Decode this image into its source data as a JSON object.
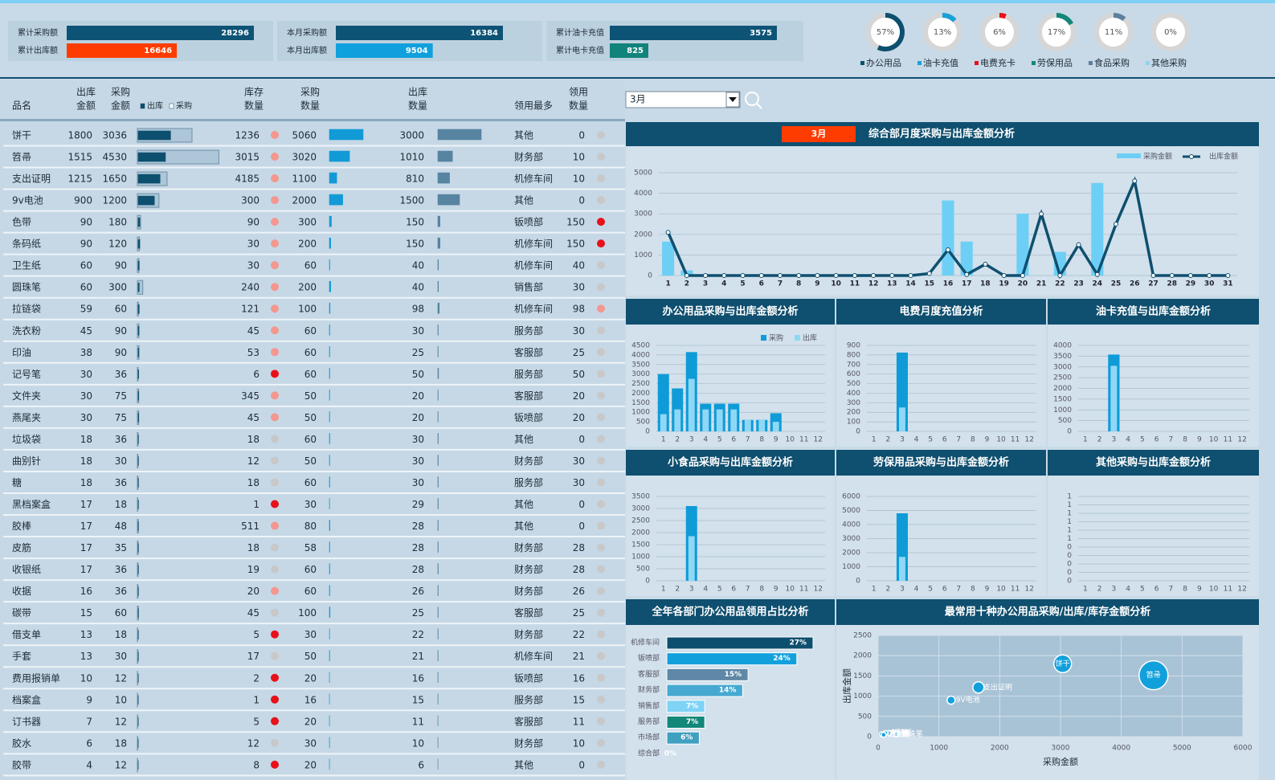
{
  "kpis": [
    {
      "items": [
        {
          "label": "累计采购额",
          "value": 28296,
          "color": "#0d5375"
        },
        {
          "label": "累计出库额",
          "value": 16646,
          "color": "#ff3c00"
        }
      ]
    },
    {
      "items": [
        {
          "label": "本月采购额",
          "value": 16384,
          "color": "#0d5375"
        },
        {
          "label": "本月出库额",
          "value": 9504,
          "color": "#10a0dd"
        }
      ]
    },
    {
      "items": [
        {
          "label": "累计油卡充值",
          "value": 3575,
          "color": "#0d5375"
        },
        {
          "label": "累计电卡充值",
          "value": 825,
          "color": "#12837a"
        }
      ]
    }
  ],
  "filter": {
    "month": "3月"
  },
  "table": {
    "headers": [
      [
        "品名"
      ],
      [
        "出库",
        "金额"
      ],
      [
        "采购",
        "金额"
      ],
      [
        "库存",
        "数量"
      ],
      [
        "采购",
        "数量"
      ],
      [
        "出库",
        "数量"
      ],
      [
        "领用最多"
      ],
      [
        "领用",
        "数量"
      ]
    ],
    "bar_legend": [
      "出库",
      "采购"
    ],
    "rows": [
      [
        "饼干",
        1800,
        3036,
        1236,
        5060,
        3000,
        "其他",
        0
      ],
      [
        "笤帚",
        1515,
        4530,
        3015,
        3020,
        1010,
        "财务部",
        10
      ],
      [
        "支出证明",
        1215,
        1650,
        4185,
        1100,
        810,
        "机修车间",
        10
      ],
      [
        "9v电池",
        900,
        1200,
        300,
        2000,
        1500,
        "其他",
        0
      ],
      [
        "色带",
        90,
        180,
        90,
        300,
        150,
        "钣喷部",
        150
      ],
      [
        "条码纸",
        90,
        120,
        30,
        200,
        150,
        "机修车间",
        150
      ],
      [
        "卫生纸",
        60,
        90,
        30,
        60,
        40,
        "机修车间",
        40
      ],
      [
        "圆珠笔",
        60,
        300,
        240,
        200,
        40,
        "销售部",
        30
      ],
      [
        "拉链袋",
        59,
        60,
        121,
        100,
        98,
        "机修车间",
        98
      ],
      [
        "洗衣粉",
        45,
        90,
        45,
        60,
        30,
        "服务部",
        30
      ],
      [
        "印油",
        38,
        90,
        53,
        60,
        25,
        "客服部",
        25
      ],
      [
        "记号笔",
        30,
        36,
        6,
        60,
        50,
        "服务部",
        50
      ],
      [
        "文件夹",
        30,
        75,
        345,
        50,
        20,
        "客服部",
        20
      ],
      [
        "燕尾夹",
        30,
        75,
        45,
        50,
        20,
        "钣喷部",
        20
      ],
      [
        "垃圾袋",
        18,
        36,
        18,
        60,
        30,
        "其他",
        0
      ],
      [
        "曲别针",
        18,
        30,
        12,
        50,
        30,
        "财务部",
        30
      ],
      [
        "糖",
        18,
        36,
        18,
        60,
        30,
        "服务部",
        30
      ],
      [
        "黑档案盒",
        17,
        18,
        1,
        30,
        29,
        "其他",
        0
      ],
      [
        "胶棒",
        17,
        48,
        511,
        80,
        28,
        "其他",
        0
      ],
      [
        "皮筋",
        17,
        35,
        18,
        58,
        28,
        "财务部",
        28
      ],
      [
        "收银纸",
        17,
        36,
        19,
        60,
        28,
        "财务部",
        28
      ],
      [
        "收据",
        16,
        36,
        20,
        60,
        26,
        "财务部",
        26
      ],
      [
        "碳带",
        15,
        60,
        45,
        100,
        25,
        "客服部",
        25
      ],
      [
        "借支单",
        13,
        18,
        5,
        30,
        22,
        "财务部",
        22
      ],
      [
        "手套",
        13,
        30,
        17,
        50,
        21,
        "机修车间",
        21
      ],
      [
        "费用报销单",
        10,
        12,
        2,
        20,
        16,
        "钣喷部",
        16
      ],
      [
        "档案盒",
        9,
        10,
        1,
        16,
        15,
        "服务部",
        15
      ],
      [
        "订书器",
        7,
        12,
        5,
        20,
        11,
        "客服部",
        11
      ],
      [
        "胶水",
        6,
        18,
        12,
        30,
        10,
        "财务部",
        10
      ],
      [
        "胶带",
        4,
        12,
        8,
        20,
        6,
        "其他",
        0
      ]
    ],
    "stock_dot_colors": [
      "#f4978e",
      "#f4978e",
      "#f4978e",
      "#f4978e",
      "#f4978e",
      "#f4978e",
      "#f4978e",
      "#f4978e",
      "#f4978e",
      "#f4978e",
      "#f4978e",
      "#e8101a",
      "#f4978e",
      "#f4978e",
      "#c8c8c8",
      "#c8c8c8",
      "#c8c8c8",
      "#e8101a",
      "#f4978e",
      "#c8c8c8",
      "#c8c8c8",
      "#f4978e",
      "#c8c8c8",
      "#e8101a",
      "#c8c8c8",
      "#e8101a",
      "#e8101a",
      "#e8101a",
      "#c8c8c8",
      "#e8101a"
    ],
    "use_dot_colors": [
      "#c8c8c8",
      "#c8c8c8",
      "#c8c8c8",
      "#c8c8c8",
      "#e8101a",
      "#e8101a",
      "#c8c8c8",
      "#c8c8c8",
      "#f4978e",
      "#c8c8c8",
      "#c8c8c8",
      "#c8c8c8",
      "#c8c8c8",
      "#c8c8c8",
      "#c8c8c8",
      "#c8c8c8",
      "#c8c8c8",
      "#c8c8c8",
      "#c8c8c8",
      "#c8c8c8",
      "#c8c8c8",
      "#c8c8c8",
      "#c8c8c8",
      "#c8c8c8",
      "#c8c8c8",
      "#c8c8c8",
      "#c8c8c8",
      "#c8c8c8",
      "#c8c8c8",
      "#c8c8c8"
    ]
  },
  "chart_data": [
    {
      "type": "bar",
      "title": "综合部月度采购与出库金额分析",
      "categories": [
        "1",
        "2",
        "3",
        "4",
        "5",
        "6",
        "7",
        "8",
        "9",
        "10",
        "11",
        "12",
        "13",
        "14",
        "15",
        "16",
        "17",
        "18",
        "19",
        "20",
        "21",
        "22",
        "23",
        "24",
        "25",
        "26",
        "27",
        "28",
        "29",
        "30",
        "31"
      ],
      "series": [
        {
          "name": "采购金额",
          "type": "bar",
          "color": "#6dcff6",
          "values": [
            1650,
            250,
            0,
            0,
            0,
            0,
            0,
            0,
            0,
            0,
            0,
            0,
            0,
            0,
            0,
            3650,
            1650,
            0,
            0,
            3000,
            0,
            1150,
            0,
            4500,
            0,
            0,
            0,
            0,
            0,
            0,
            0
          ]
        },
        {
          "name": "出库金额",
          "type": "line",
          "color": "#0f4f6f",
          "values": [
            2100,
            0,
            0,
            0,
            0,
            0,
            0,
            0,
            0,
            0,
            0,
            0,
            0,
            0,
            100,
            1250,
            50,
            550,
            0,
            0,
            3000,
            0,
            1500,
            50,
            2500,
            4600,
            0,
            0,
            0,
            0,
            0
          ]
        }
      ],
      "ylim": [
        0,
        5000
      ],
      "yticks": [
        0,
        1000,
        2000,
        3000,
        4000,
        5000
      ],
      "grid": true,
      "legend": "top-right"
    },
    {
      "type": "bar",
      "title": "办公用品采购与出库金额分析",
      "categories": [
        "1",
        "2",
        "3",
        "4",
        "5",
        "6",
        "7",
        "8",
        "9",
        "10",
        "11",
        "12"
      ],
      "series": [
        {
          "name": "采购",
          "color": "#0e9bd8",
          "values": [
            3000,
            2250,
            4150,
            1450,
            1450,
            1450,
            600,
            600,
            950,
            0,
            0,
            0
          ]
        },
        {
          "name": "出库",
          "color": "#8fd8f5",
          "values": [
            900,
            1150,
            2750,
            1150,
            1150,
            1150,
            600,
            600,
            500,
            0,
            0,
            0
          ]
        }
      ],
      "ylim": [
        0,
        4500
      ],
      "yticks": [
        0,
        500,
        1000,
        1500,
        2000,
        2500,
        3000,
        3500,
        4000,
        4500
      ],
      "grid": true,
      "legend": "top-right"
    },
    {
      "type": "bar",
      "title": "电费月度充值分析",
      "categories": [
        "1",
        "2",
        "3",
        "4",
        "5",
        "6",
        "7",
        "8",
        "9",
        "10",
        "11",
        "12"
      ],
      "series": [
        {
          "color": "#0e9bd8",
          "values": [
            0,
            0,
            825,
            0,
            0,
            0,
            0,
            0,
            0,
            0,
            0,
            0
          ]
        },
        {
          "color": "#8fd8f5",
          "values": [
            0,
            0,
            250,
            0,
            0,
            0,
            0,
            0,
            0,
            0,
            0,
            0
          ]
        }
      ],
      "ylim": [
        0,
        900
      ],
      "yticks": [
        0,
        100,
        200,
        300,
        400,
        500,
        600,
        700,
        800,
        900
      ],
      "grid": true
    },
    {
      "type": "bar",
      "title": "油卡充值与出库金额分析",
      "categories": [
        "1",
        "2",
        "3",
        "4",
        "5",
        "6",
        "7",
        "8",
        "9",
        "10",
        "11",
        "12"
      ],
      "series": [
        {
          "color": "#0e9bd8",
          "values": [
            0,
            0,
            3575,
            0,
            0,
            0,
            0,
            0,
            0,
            0,
            0,
            0
          ]
        },
        {
          "color": "#8fd8f5",
          "values": [
            0,
            0,
            3050,
            0,
            0,
            0,
            0,
            0,
            0,
            0,
            0,
            0
          ]
        }
      ],
      "ylim": [
        0,
        4000
      ],
      "yticks": [
        0,
        500,
        1000,
        1500,
        2000,
        2500,
        3000,
        3500,
        4000
      ],
      "grid": true
    },
    {
      "type": "bar",
      "title": "小食品采购与出库金额分析",
      "categories": [
        "1",
        "2",
        "3",
        "4",
        "5",
        "6",
        "7",
        "8",
        "9",
        "10",
        "11",
        "12"
      ],
      "series": [
        {
          "color": "#0e9bd8",
          "values": [
            0,
            0,
            3100,
            0,
            0,
            0,
            0,
            0,
            0,
            0,
            0,
            0
          ]
        },
        {
          "color": "#8fd8f5",
          "values": [
            0,
            0,
            1850,
            0,
            0,
            0,
            0,
            0,
            0,
            0,
            0,
            0
          ]
        }
      ],
      "ylim": [
        0,
        3500
      ],
      "yticks": [
        0,
        500,
        1000,
        1500,
        2000,
        2500,
        3000,
        3500
      ],
      "grid": true
    },
    {
      "type": "bar",
      "title": "劳保用品采购与出库金额分析",
      "categories": [
        "1",
        "2",
        "3",
        "4",
        "5",
        "6",
        "7",
        "8",
        "9",
        "10",
        "11",
        "12"
      ],
      "series": [
        {
          "color": "#0e9bd8",
          "values": [
            0,
            0,
            4800,
            0,
            0,
            0,
            0,
            0,
            0,
            0,
            0,
            0
          ]
        },
        {
          "color": "#8fd8f5",
          "values": [
            0,
            0,
            1700,
            0,
            0,
            0,
            0,
            0,
            0,
            0,
            0,
            0
          ]
        }
      ],
      "ylim": [
        0,
        6000
      ],
      "yticks": [
        0,
        1000,
        2000,
        3000,
        4000,
        5000,
        6000
      ],
      "grid": true
    },
    {
      "type": "bar",
      "title": "其他采购与出库金额分析",
      "categories": [
        "1",
        "2",
        "3",
        "4",
        "5",
        "6",
        "7",
        "8",
        "9",
        "10",
        "11",
        "12"
      ],
      "series": [
        {
          "color": "#0e9bd8",
          "values": [
            0,
            0,
            0,
            0,
            0,
            0,
            0,
            0,
            0,
            0,
            0,
            0
          ]
        },
        {
          "color": "#8fd8f5",
          "values": [
            0,
            0,
            0,
            0,
            0,
            0,
            0,
            0,
            0,
            0,
            0,
            0
          ]
        }
      ],
      "ylim": [
        0,
        1
      ],
      "yticks": [
        0,
        {
          "value": 0.1,
          "label": "0"
        },
        {
          "value": 0.2,
          "label": "0"
        },
        {
          "value": 0.3,
          "label": "0"
        },
        {
          "value": 0.4,
          "label": "0"
        },
        {
          "value": 0.5,
          "label": "1"
        },
        {
          "value": 0.6,
          "label": "1"
        },
        {
          "value": 0.7,
          "label": "1"
        },
        {
          "value": 0.8,
          "label": "1"
        },
        {
          "value": 0.9,
          "label": "1"
        },
        1
      ],
      "grid": true
    },
    {
      "type": "hbar",
      "title": "全年各部门办公用品领用占比分析",
      "categories": [
        "机修车间",
        "钣喷部",
        "客服部",
        "财务部",
        "销售部",
        "服务部",
        "市场部",
        "综合部"
      ],
      "values": [
        27,
        24,
        15,
        14,
        7,
        7,
        6,
        0
      ],
      "value_labels": [
        "27%",
        "24%",
        "15%",
        "14%",
        "7%",
        "7%",
        "6%",
        "0%"
      ],
      "colors": [
        "#0d4f6e",
        "#12a0dc",
        "#5f88a6",
        "#46a9d1",
        "#7fd3f5",
        "#12877a",
        "#3fa0c0",
        "#8fd3f2"
      ]
    },
    {
      "type": "bubble",
      "title": "最常用十种办公用品采购/出库/库存金额分析",
      "x_label": "采购金额",
      "y_label": "出库金额",
      "labels": [
        "饼干",
        "笤帚",
        "支出证明",
        "9V电池",
        "色带",
        "条码纸",
        "卫生纸",
        "圆珠笔",
        "拉链袋",
        "洗衣粉"
      ],
      "x": [
        3036,
        4530,
        1650,
        1200,
        180,
        120,
        90,
        300,
        60,
        90
      ],
      "y": [
        1800,
        1515,
        1215,
        900,
        90,
        90,
        60,
        60,
        59,
        45
      ],
      "sizes": [
        11,
        18,
        7,
        5,
        3,
        3,
        3,
        3,
        3,
        3
      ],
      "color": "#12a0dc",
      "xlim": [
        0,
        6000
      ],
      "xticks": [
        0,
        1000,
        2000,
        3000,
        4000,
        5000,
        6000
      ],
      "ylim": [
        0,
        2500
      ],
      "yticks": [
        0,
        500,
        1000,
        1500,
        2000,
        2500
      ],
      "grid": true
    },
    {
      "type": "donut",
      "categories": [
        "办公用品",
        "油卡充值",
        "电费充卡",
        "劳保用品",
        "食品采购",
        "其他采购"
      ],
      "values": [
        57,
        13,
        6,
        17,
        11,
        0
      ],
      "value_labels": [
        "57%",
        "13%",
        "6%",
        "17%",
        "11%",
        "0%"
      ],
      "colors": [
        "#0d4f6e",
        "#1aa0d8",
        "#e8101a",
        "#12877a",
        "#5b7f9c",
        "#8fd3f2"
      ]
    }
  ]
}
